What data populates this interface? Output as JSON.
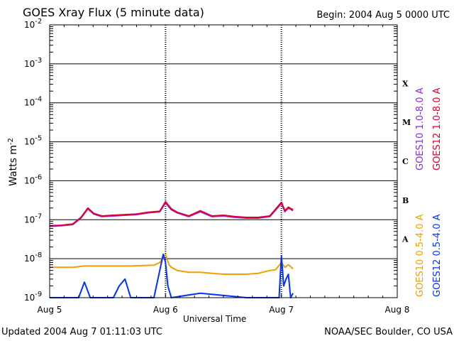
{
  "header": {
    "title": "GOES Xray Flux (5 minute data)",
    "begin": "Begin:  2004 Aug 5 0000 UTC"
  },
  "footer": {
    "updated": "Updated 2004 Aug  7 01:11:03 UTC",
    "credit": "NOAA/SEC Boulder, CO USA"
  },
  "chart_data": {
    "type": "line",
    "title": "GOES Xray Flux (5 minute data)",
    "xlabel": "Universal Time",
    "ylabel": "Watts m",
    "ylabel_sup": "-2",
    "yscale": "log",
    "ylim": [
      1e-09,
      0.01
    ],
    "xlim_days": [
      0,
      3
    ],
    "x_ticks": [
      "Aug 5",
      "Aug 6",
      "Aug 7",
      "Aug 8"
    ],
    "y_ticks": [
      {
        "base": "10",
        "exp": "-9"
      },
      {
        "base": "10",
        "exp": "-8"
      },
      {
        "base": "10",
        "exp": "-7"
      },
      {
        "base": "10",
        "exp": "-6"
      },
      {
        "base": "10",
        "exp": "-5"
      },
      {
        "base": "10",
        "exp": "-4"
      },
      {
        "base": "10",
        "exp": "-3"
      },
      {
        "base": "10",
        "exp": "-2"
      }
    ],
    "flare_classes": [
      {
        "label": "X",
        "log_low": -4
      },
      {
        "label": "M",
        "log_low": -5
      },
      {
        "label": "C",
        "log_low": -6
      },
      {
        "label": "B",
        "log_low": -7
      },
      {
        "label": "A",
        "log_low": -8
      }
    ],
    "legend": [
      {
        "label": "GOES10 1.0-8.0 A",
        "color": "#8a2be2",
        "group": "long"
      },
      {
        "label": "GOES12 1.0-8.0 A",
        "color": "#e0002a",
        "group": "long"
      },
      {
        "label": "GOES10 0.5-4.0 A",
        "color": "#f0a000",
        "group": "short"
      },
      {
        "label": "GOES12 0.5-4.0 A",
        "color": "#0033ff",
        "group": "short"
      }
    ],
    "series": [
      {
        "name": "GOES10 1.0-8.0 A",
        "color": "#8a2be2",
        "x": [
          0,
          0.1,
          0.2,
          0.27,
          0.33,
          0.38,
          0.45,
          0.55,
          0.65,
          0.75,
          0.85,
          0.95,
          1.0,
          1.05,
          1.1,
          1.2,
          1.3,
          1.4,
          1.5,
          1.6,
          1.7,
          1.8,
          1.9,
          2.0,
          2.03,
          2.06,
          2.1
        ],
        "y": [
          6.8e-08,
          7e-08,
          7.5e-08,
          1.1e-07,
          1.9e-07,
          1.4e-07,
          1.2e-07,
          1.25e-07,
          1.3e-07,
          1.35e-07,
          1.5e-07,
          1.6e-07,
          2.7e-07,
          1.8e-07,
          1.5e-07,
          1.2e-07,
          1.6e-07,
          1.2e-07,
          1.25e-07,
          1.15e-07,
          1.1e-07,
          1.1e-07,
          1.2e-07,
          2.6e-07,
          1.6e-07,
          2e-07,
          1.7e-07
        ]
      },
      {
        "name": "GOES12 1.0-8.0 A",
        "color": "#e0002a",
        "x": [
          0,
          0.1,
          0.2,
          0.27,
          0.33,
          0.38,
          0.45,
          0.55,
          0.65,
          0.75,
          0.85,
          0.95,
          1.0,
          1.05,
          1.1,
          1.2,
          1.3,
          1.4,
          1.5,
          1.6,
          1.7,
          1.8,
          1.9,
          2.0,
          2.03,
          2.06,
          2.1
        ],
        "y": [
          7e-08,
          7.2e-08,
          7.8e-08,
          1.15e-07,
          2e-07,
          1.45e-07,
          1.25e-07,
          1.3e-07,
          1.35e-07,
          1.4e-07,
          1.55e-07,
          1.65e-07,
          2.9e-07,
          1.9e-07,
          1.55e-07,
          1.25e-07,
          1.7e-07,
          1.25e-07,
          1.3e-07,
          1.2e-07,
          1.15e-07,
          1.15e-07,
          1.25e-07,
          2.8e-07,
          1.7e-07,
          2.1e-07,
          1.8e-07
        ]
      },
      {
        "name": "GOES10 0.5-4.0 A",
        "color": "#f0a000",
        "x": [
          0,
          0.2,
          0.3,
          0.45,
          0.6,
          0.7,
          0.9,
          0.95,
          1.0,
          1.03,
          1.05,
          1.1,
          1.2,
          1.3,
          1.4,
          1.5,
          1.6,
          1.7,
          1.8,
          1.9,
          1.95,
          2.0,
          2.03,
          2.06,
          2.1
        ],
        "y": [
          6e-09,
          6e-09,
          6.5e-09,
          6.5e-09,
          6.5e-09,
          6.5e-09,
          6.8e-09,
          8e-09,
          1.3e-08,
          7e-09,
          6e-09,
          5e-09,
          4.5e-09,
          4.5e-09,
          4.2e-09,
          4e-09,
          4e-09,
          4e-09,
          4.2e-09,
          5e-09,
          5.2e-09,
          8e-09,
          6e-09,
          7e-09,
          5.5e-09
        ]
      },
      {
        "name": "GOES12 0.5-4.0 A",
        "color": "#0033ff",
        "x": [
          0,
          0.2,
          0.25,
          0.3,
          0.35,
          0.45,
          0.55,
          0.6,
          0.65,
          0.7,
          0.8,
          0.9,
          0.95,
          0.98,
          1.0,
          1.02,
          1.05,
          1.3,
          1.7,
          1.9,
          1.98,
          2.0,
          2.02,
          2.04,
          2.06,
          2.08,
          2.1
        ],
        "y": [
          1e-09,
          1e-09,
          1e-09,
          2.5e-09,
          1e-09,
          1e-09,
          1e-09,
          2e-09,
          3e-09,
          1e-09,
          1e-09,
          1e-09,
          5e-09,
          1.3e-08,
          8e-09,
          2e-09,
          1e-09,
          1.3e-09,
          1e-09,
          1e-09,
          1e-09,
          1.2e-08,
          2e-09,
          3e-09,
          4e-09,
          1e-09,
          1.3e-09
        ]
      }
    ]
  }
}
